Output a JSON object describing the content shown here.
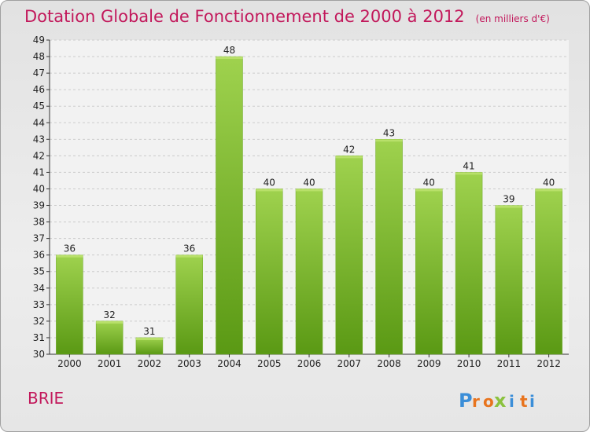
{
  "chart_data": {
    "type": "bar",
    "title": "Dotation Globale de Fonctionnement de 2000 à 2012",
    "subtitle": "(en milliers d'€)",
    "categories": [
      "2000",
      "2001",
      "2002",
      "2003",
      "2004",
      "2005",
      "2006",
      "2007",
      "2008",
      "2009",
      "2010",
      "2011",
      "2012"
    ],
    "values": [
      36,
      32,
      31,
      36,
      48,
      40,
      40,
      42,
      43,
      40,
      41,
      39,
      40
    ],
    "ylim": [
      30,
      49
    ],
    "yticks": [
      30,
      31,
      32,
      33,
      34,
      35,
      36,
      37,
      38,
      39,
      40,
      41,
      42,
      43,
      44,
      45,
      46,
      47,
      48,
      49
    ],
    "grid": true,
    "bar_color": "#7dba2f",
    "bar_color_light": "#9fd24e",
    "bar_color_dark": "#5a9914"
  },
  "footer": {
    "city_name": "BRIE",
    "logo_text": "Proxiti"
  },
  "colors": {
    "title": "#c2185b",
    "logo_letters": [
      "#3b8ed8",
      "#e8741e",
      "#e8741e",
      "#8bc23f",
      "#3b8ed8",
      "#e8741e",
      "#3b8ed8"
    ]
  }
}
